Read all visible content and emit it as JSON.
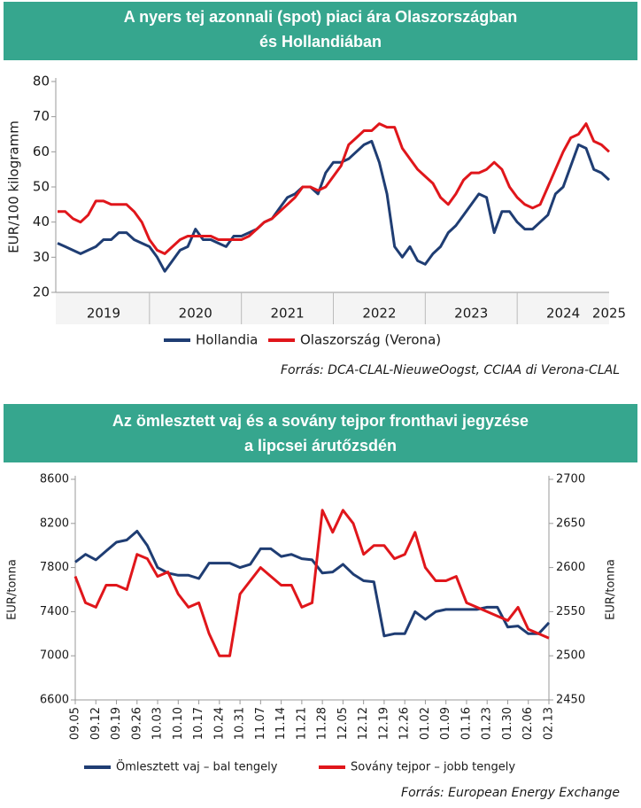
{
  "chart_data": [
    {
      "type": "line",
      "title": [
        "A nyers tej azonnali (spot) piaci ára Olaszországban",
        "és Hollandiában"
      ],
      "ylabel": "EUR/100 kilogramm",
      "source": "Forrás: DCA-CLAL-NieuweOogst, CCIAA di Verona-CLAL",
      "categories": [
        null,
        null,
        null,
        null,
        null,
        null,
        "2019",
        null,
        null,
        null,
        null,
        null,
        null,
        null,
        null,
        null,
        null,
        null,
        "2020",
        null,
        null,
        null,
        null,
        null,
        null,
        null,
        null,
        null,
        null,
        null,
        "2021",
        null,
        null,
        null,
        null,
        null,
        null,
        null,
        null,
        null,
        null,
        null,
        "2022",
        null,
        null,
        null,
        null,
        null,
        null,
        null,
        null,
        null,
        null,
        null,
        "2023",
        null,
        null,
        null,
        null,
        null,
        null,
        null,
        null,
        null,
        null,
        null,
        "2024",
        null,
        null,
        null,
        null,
        null,
        "2025"
      ],
      "ylim": [
        20,
        80
      ],
      "yticks": [
        20,
        30,
        40,
        50,
        60,
        70,
        80
      ],
      "series": [
        {
          "name": "Hollandia",
          "color": "#1f3d73",
          "values": [
            34,
            33,
            32,
            31,
            32,
            33,
            35,
            35,
            37,
            37,
            35,
            34,
            33,
            30,
            26,
            29,
            32,
            33,
            38,
            35,
            35,
            34,
            33,
            36,
            36,
            37,
            38,
            40,
            41,
            44,
            47,
            48,
            50,
            50,
            48,
            54,
            57,
            57,
            58,
            60,
            62,
            63,
            57,
            48,
            33,
            30,
            33,
            29,
            28,
            31,
            33,
            37,
            39,
            42,
            45,
            48,
            47,
            37,
            43,
            43,
            40,
            38,
            38,
            40,
            42,
            48,
            50,
            56,
            62,
            61,
            55,
            54,
            52
          ]
        },
        {
          "name": "Olaszország (Verona)",
          "color": "#e0161b",
          "values": [
            43,
            43,
            41,
            40,
            42,
            46,
            46,
            45,
            45,
            45,
            43,
            40,
            35,
            32,
            31,
            33,
            35,
            36,
            36,
            36,
            36,
            35,
            35,
            35,
            35,
            36,
            38,
            40,
            41,
            43,
            45,
            47,
            50,
            50,
            49,
            50,
            53,
            56,
            62,
            64,
            66,
            66,
            68,
            67,
            67,
            61,
            58,
            55,
            53,
            51,
            47,
            45,
            48,
            52,
            54,
            54,
            55,
            57,
            55,
            50,
            47,
            45,
            44,
            45,
            50,
            55,
            60,
            64,
            65,
            68,
            63,
            62,
            60
          ]
        }
      ]
    },
    {
      "type": "line",
      "title": [
        "Az ömlesztett vaj és a sovány tejpor fronthavi jegyzése",
        "a lipcsei árutőzsdén"
      ],
      "ylabel": "EUR/tonna",
      "y2label": "EUR/tonna",
      "source": "Forrás: European Energy Exchange",
      "categories": [
        "09.05",
        null,
        "09.12",
        null,
        "09.19",
        null,
        "09.26",
        null,
        "10.03",
        null,
        "10.10",
        null,
        "10.17",
        null,
        "10.24",
        null,
        "10.31",
        null,
        "11.07",
        null,
        "11.14",
        null,
        "11.21",
        null,
        "11.28",
        null,
        "12.05",
        null,
        "12.12",
        null,
        "12.19",
        null,
        "12.26",
        null,
        "01.02",
        null,
        "01.09",
        null,
        "01.16",
        null,
        "01.23",
        null,
        "01.30",
        null,
        "02.06",
        null,
        "02.13"
      ],
      "ylim": [
        6600,
        8600
      ],
      "yticks": [
        6600,
        7000,
        7400,
        7800,
        8200,
        8600
      ],
      "y2lim": [
        2450,
        2700
      ],
      "y2ticks": [
        2450,
        2500,
        2550,
        2600,
        2650,
        2700
      ],
      "series": [
        {
          "name": "Ömlesztett vaj – bal tengely",
          "color": "#1f3d73",
          "values": [
            7850,
            7920,
            7870,
            7950,
            8030,
            8050,
            8130,
            8000,
            7800,
            7750,
            7730,
            7730,
            7700,
            7840,
            7840,
            7840,
            7800,
            7830,
            7970,
            7970,
            7900,
            7920,
            7880,
            7870,
            7750,
            7760,
            7830,
            7740,
            7680,
            7670,
            7180,
            7200,
            7200,
            7400,
            7330,
            7400,
            7420,
            7420,
            7420,
            7420,
            7440,
            7440,
            7260,
            7270,
            7200,
            7200,
            7300
          ]
        },
        {
          "name": "Sovány tejpor – jobb tengely",
          "color": "#e0161b",
          "axis": "y2",
          "values": [
            2590,
            2560,
            2555,
            2580,
            2580,
            2575,
            2615,
            2610,
            2590,
            2595,
            2570,
            2555,
            2560,
            2525,
            2500,
            2500,
            2570,
            2585,
            2600,
            2590,
            2580,
            2580,
            2555,
            2560,
            2665,
            2640,
            2665,
            2650,
            2615,
            2625,
            2625,
            2610,
            2615,
            2640,
            2600,
            2585,
            2585,
            2590,
            2560,
            2555,
            2550,
            2545,
            2540,
            2555,
            2530,
            2525,
            2520
          ]
        }
      ]
    }
  ]
}
